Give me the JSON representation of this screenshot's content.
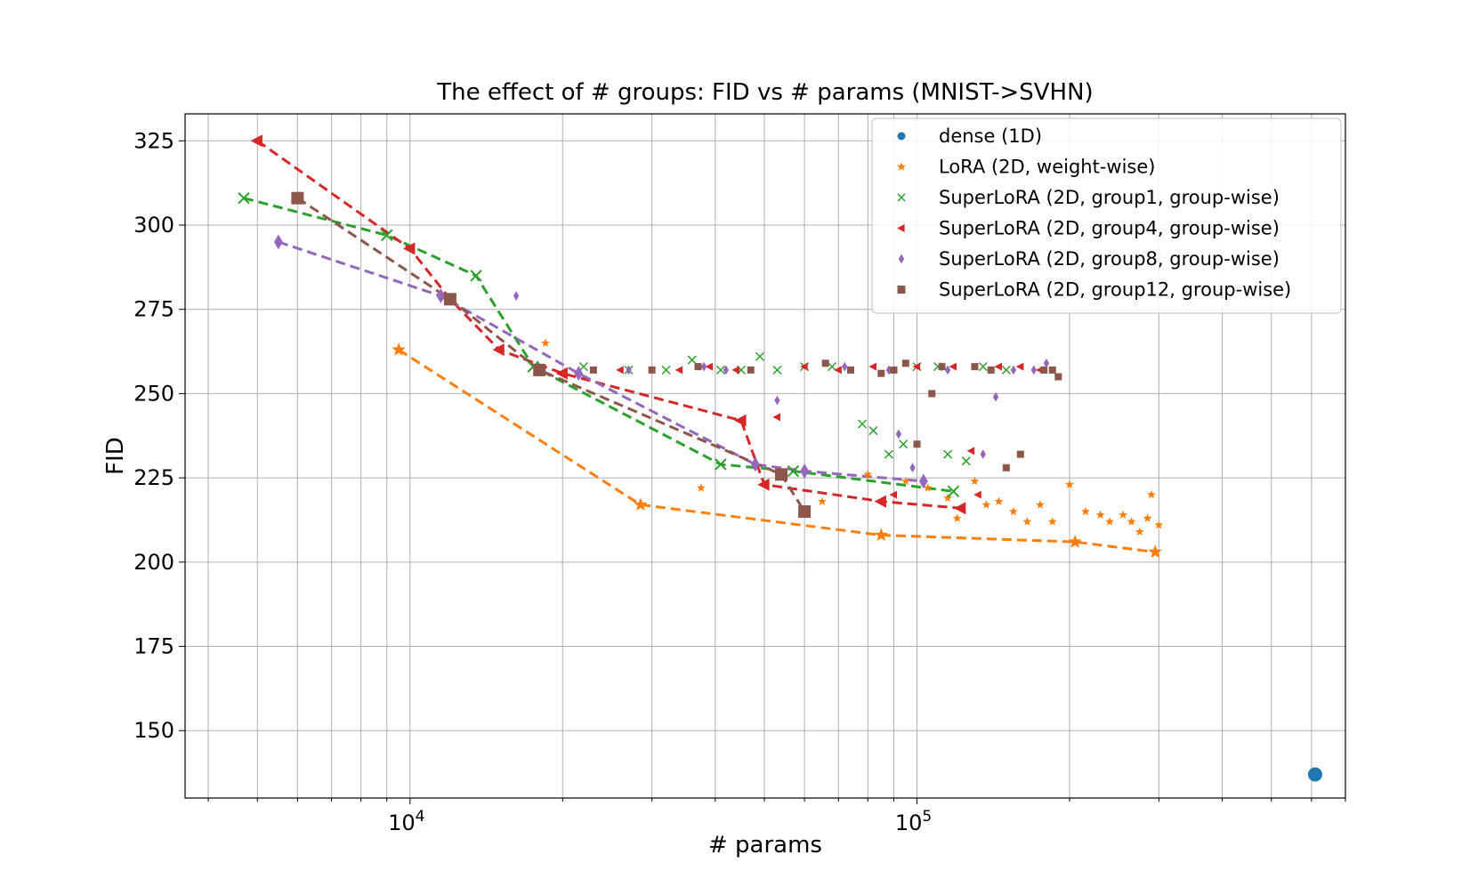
{
  "chart_data": {
    "type": "scatter",
    "title": "The effect of # groups: FID vs # params (MNIST->SVHN)",
    "xlabel": "# params",
    "ylabel": "FID",
    "xscale": "log",
    "xlim": [
      3600,
      700000
    ],
    "ylim": [
      130,
      333
    ],
    "x_ticks": [
      {
        "value": 10000,
        "base": "10",
        "exp": "4"
      },
      {
        "value": 100000,
        "base": "10",
        "exp": "5"
      }
    ],
    "y_ticks": [
      {
        "value": 150,
        "label": "150"
      },
      {
        "value": 175,
        "label": "175"
      },
      {
        "value": 200,
        "label": "200"
      },
      {
        "value": 225,
        "label": "225"
      },
      {
        "value": 250,
        "label": "250"
      },
      {
        "value": 275,
        "label": "275"
      },
      {
        "value": 300,
        "label": "300"
      },
      {
        "value": 325,
        "label": "325"
      }
    ],
    "grid": true,
    "legend_position": "top-right",
    "series": [
      {
        "name": "dense (1D)",
        "color": "#1f77b4",
        "marker": "circle",
        "points": [],
        "frontier": [
          [
            610000,
            137
          ]
        ]
      },
      {
        "name": "LoRA (2D, weight-wise)",
        "color": "#ff7f0e",
        "marker": "star",
        "points": [
          [
            18500,
            265
          ],
          [
            37500,
            222
          ],
          [
            65000,
            218
          ],
          [
            80000,
            226
          ],
          [
            95000,
            224
          ],
          [
            105000,
            222
          ],
          [
            115000,
            219
          ],
          [
            120000,
            213
          ],
          [
            130000,
            224
          ],
          [
            137000,
            217
          ],
          [
            145000,
            218
          ],
          [
            155000,
            215
          ],
          [
            165000,
            212
          ],
          [
            175000,
            217
          ],
          [
            185000,
            212
          ],
          [
            200000,
            223
          ],
          [
            215000,
            215
          ],
          [
            230000,
            214
          ],
          [
            240000,
            212
          ],
          [
            255000,
            214
          ],
          [
            265000,
            212
          ],
          [
            275000,
            209
          ],
          [
            285000,
            213
          ],
          [
            290000,
            220
          ],
          [
            300000,
            211
          ]
        ],
        "frontier": [
          [
            9500,
            263
          ],
          [
            28500,
            217
          ],
          [
            85000,
            208
          ],
          [
            205000,
            206
          ],
          [
            295000,
            203
          ]
        ]
      },
      {
        "name": "SuperLoRA (2D, group1, group-wise)",
        "color": "#2ca02c",
        "marker": "x",
        "points": [
          [
            22000,
            258
          ],
          [
            27000,
            257
          ],
          [
            32000,
            257
          ],
          [
            36000,
            260
          ],
          [
            41000,
            257
          ],
          [
            45000,
            257
          ],
          [
            49000,
            261
          ],
          [
            53000,
            257
          ],
          [
            60000,
            258
          ],
          [
            68000,
            258
          ],
          [
            78000,
            241
          ],
          [
            82000,
            239
          ],
          [
            88000,
            232
          ],
          [
            94000,
            235
          ],
          [
            100000,
            258
          ],
          [
            110000,
            258
          ],
          [
            115000,
            232
          ],
          [
            125000,
            230
          ],
          [
            135000,
            258
          ],
          [
            150000,
            257
          ]
        ],
        "frontier": [
          [
            4700,
            308
          ],
          [
            9000,
            297
          ],
          [
            13500,
            285
          ],
          [
            17500,
            258
          ],
          [
            41000,
            229
          ],
          [
            57000,
            227
          ],
          [
            118000,
            221
          ]
        ]
      },
      {
        "name": "SuperLoRA (2D, group4, group-wise)",
        "color": "#d62728",
        "marker": "triangle-left",
        "points": [
          [
            26000,
            257
          ],
          [
            34000,
            257
          ],
          [
            39000,
            258
          ],
          [
            44000,
            257
          ],
          [
            53000,
            243
          ],
          [
            60000,
            258
          ],
          [
            70000,
            257
          ],
          [
            82000,
            258
          ],
          [
            90000,
            220
          ],
          [
            100000,
            258
          ],
          [
            118000,
            258
          ],
          [
            128000,
            233
          ],
          [
            132000,
            220
          ],
          [
            145000,
            258
          ],
          [
            160000,
            258
          ],
          [
            175000,
            257
          ]
        ],
        "frontier": [
          [
            5000,
            325
          ],
          [
            10000,
            293
          ],
          [
            12000,
            278
          ],
          [
            15000,
            263
          ],
          [
            20000,
            256
          ],
          [
            45000,
            242
          ],
          [
            50000,
            223
          ],
          [
            85000,
            218
          ],
          [
            122000,
            216
          ]
        ]
      },
      {
        "name": "SuperLoRA (2D, group8, group-wise)",
        "color": "#9467bd",
        "marker": "diamond",
        "points": [
          [
            16200,
            279
          ],
          [
            27000,
            257
          ],
          [
            38000,
            258
          ],
          [
            42000,
            257
          ],
          [
            53000,
            248
          ],
          [
            72000,
            258
          ],
          [
            88000,
            257
          ],
          [
            92000,
            238
          ],
          [
            98000,
            228
          ],
          [
            115000,
            257
          ],
          [
            135000,
            232
          ],
          [
            143000,
            249
          ],
          [
            155000,
            257
          ],
          [
            170000,
            257
          ],
          [
            180000,
            259
          ]
        ],
        "frontier": [
          [
            5500,
            295
          ],
          [
            11500,
            279
          ],
          [
            21500,
            256
          ],
          [
            48000,
            229
          ],
          [
            60000,
            227
          ],
          [
            103000,
            224
          ]
        ]
      },
      {
        "name": "SuperLoRA (2D, group12, group-wise)",
        "color": "#8c564b",
        "marker": "square",
        "points": [
          [
            23000,
            257
          ],
          [
            30000,
            257
          ],
          [
            37000,
            258
          ],
          [
            47000,
            257
          ],
          [
            66000,
            259
          ],
          [
            74000,
            257
          ],
          [
            85000,
            256
          ],
          [
            90000,
            257
          ],
          [
            95000,
            259
          ],
          [
            100000,
            235
          ],
          [
            107000,
            250
          ],
          [
            112000,
            258
          ],
          [
            130000,
            258
          ],
          [
            140000,
            257
          ],
          [
            150000,
            228
          ],
          [
            160000,
            232
          ],
          [
            178000,
            257
          ],
          [
            185000,
            257
          ],
          [
            190000,
            255
          ]
        ],
        "frontier": [
          [
            6000,
            308
          ],
          [
            12000,
            278
          ],
          [
            18000,
            257
          ],
          [
            54000,
            226
          ],
          [
            60000,
            215
          ]
        ]
      }
    ]
  }
}
